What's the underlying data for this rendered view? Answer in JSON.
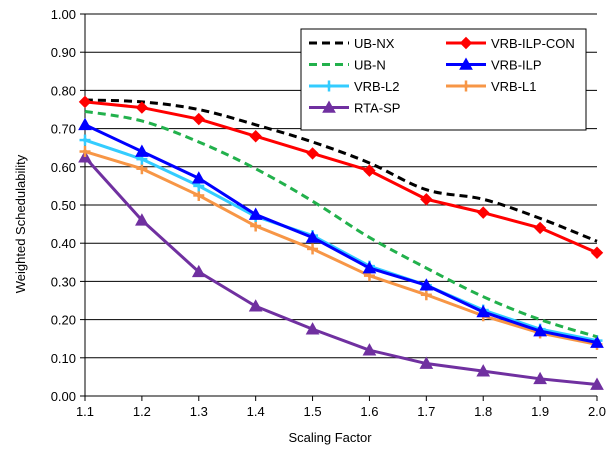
{
  "chart_data": {
    "type": "line",
    "title": "",
    "xlabel": "Scaling Factor",
    "ylabel": "Weighted Schedulability",
    "xlim": [
      1.1,
      2.0
    ],
    "ylim": [
      0.0,
      1.0
    ],
    "x": [
      1.1,
      1.2,
      1.3,
      1.4,
      1.5,
      1.6,
      1.7,
      1.8,
      1.9,
      2.0
    ],
    "x_tick_labels": [
      "1.1",
      "1.2",
      "1.3",
      "1.4",
      "1.5",
      "1.6",
      "1.7",
      "1.8",
      "1.9",
      "2.0"
    ],
    "y_ticks": [
      0.0,
      0.1,
      0.2,
      0.3,
      0.4,
      0.5,
      0.6,
      0.7,
      0.8,
      0.9,
      1.0
    ],
    "y_tick_labels": [
      "0.00",
      "0.10",
      "0.20",
      "0.30",
      "0.40",
      "0.50",
      "0.60",
      "0.70",
      "0.80",
      "0.90",
      "1.00"
    ],
    "grid": "horizontal",
    "legend_position": "top-right",
    "series": [
      {
        "name": "UB-NX",
        "color": "#000000",
        "dash": true,
        "marker": "none",
        "smooth": true,
        "values": [
          0.775,
          0.77,
          0.75,
          0.71,
          0.665,
          0.61,
          0.54,
          0.515,
          0.465,
          0.405
        ]
      },
      {
        "name": "VRB-ILP-CON",
        "color": "#ff0000",
        "dash": false,
        "marker": "diamond",
        "smooth": false,
        "values": [
          0.77,
          0.755,
          0.725,
          0.68,
          0.635,
          0.59,
          0.515,
          0.48,
          0.44,
          0.375
        ]
      },
      {
        "name": "UB-N",
        "color": "#22b14c",
        "dash": true,
        "marker": "none",
        "smooth": true,
        "values": [
          0.745,
          0.72,
          0.665,
          0.595,
          0.51,
          0.415,
          0.335,
          0.26,
          0.2,
          0.155
        ]
      },
      {
        "name": "VRB-ILP",
        "color": "#0000ff",
        "dash": false,
        "marker": "triangle",
        "smooth": false,
        "values": [
          0.71,
          0.64,
          0.57,
          0.475,
          0.415,
          0.335,
          0.29,
          0.22,
          0.17,
          0.14
        ]
      },
      {
        "name": "VRB-L2",
        "color": "#33ccff",
        "dash": false,
        "marker": "star",
        "smooth": false,
        "values": [
          0.67,
          0.62,
          0.55,
          0.47,
          0.42,
          0.34,
          0.29,
          0.225,
          0.175,
          0.145
        ]
      },
      {
        "name": "VRB-L1",
        "color": "#f79646",
        "dash": false,
        "marker": "star",
        "smooth": false,
        "values": [
          0.64,
          0.595,
          0.525,
          0.445,
          0.385,
          0.315,
          0.265,
          0.21,
          0.165,
          0.135
        ]
      },
      {
        "name": "RTA-SP",
        "color": "#7030a0",
        "dash": false,
        "marker": "triangle",
        "smooth": false,
        "values": [
          0.625,
          0.46,
          0.325,
          0.235,
          0.175,
          0.12,
          0.085,
          0.065,
          0.045,
          0.03
        ]
      }
    ]
  }
}
